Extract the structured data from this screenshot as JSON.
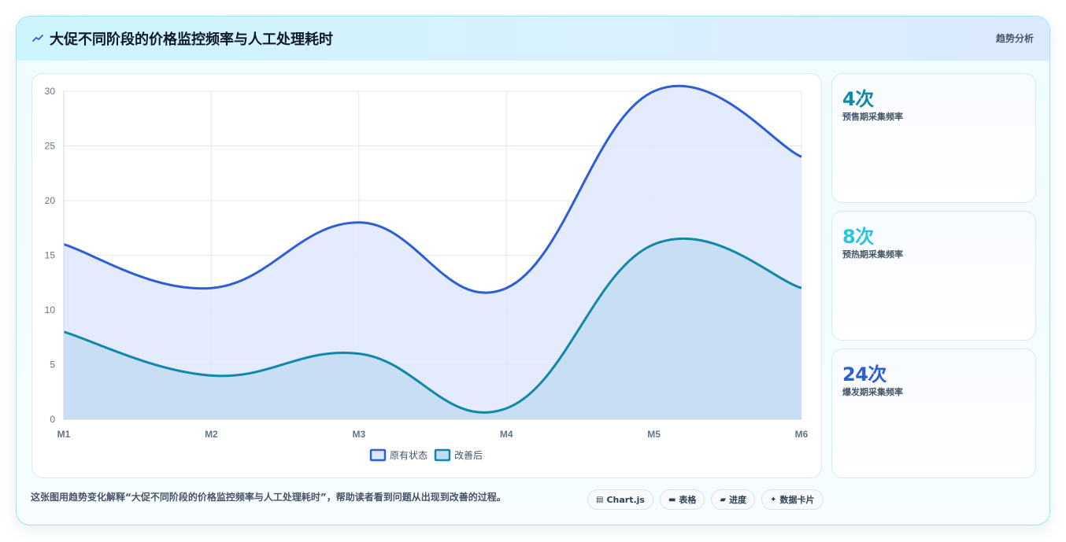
{
  "header": {
    "title": "大促不同阶段的价格监控频率与人工处理耗时",
    "tag": "趋势分析"
  },
  "stats": [
    {
      "value": "4次",
      "label": "预售期采集频率",
      "color": "#0e8aa8"
    },
    {
      "value": "8次",
      "label": "预热期采集频率",
      "color": "#2bc4e0"
    },
    {
      "value": "24次",
      "label": "爆发期采集频率",
      "color": "#2d5ed6"
    }
  ],
  "caption": "这张图用趋势变化解释“大促不同阶段的价格监控频率与人工处理耗时”，帮助读者看到问题从出现到改善的过程。",
  "chips": [
    {
      "icon": "chart-icon",
      "glyph": "▤",
      "label": "Chart.js"
    },
    {
      "icon": "table-icon",
      "glyph": "▬",
      "label": "表格"
    },
    {
      "icon": "progress-icon",
      "glyph": "▰",
      "label": "进度"
    },
    {
      "icon": "sparkle-icon",
      "glyph": "✦",
      "label": "数据卡片"
    }
  ],
  "chart_data": {
    "type": "area",
    "categories": [
      "M1",
      "M2",
      "M3",
      "M4",
      "M5",
      "M6"
    ],
    "ylim": [
      0,
      30
    ],
    "yticks": [
      0,
      5,
      10,
      15,
      20,
      25,
      30
    ],
    "grid": true,
    "legend_position": "bottom",
    "series": [
      {
        "name": "原有状态",
        "values": [
          16,
          12,
          18,
          12,
          30,
          24
        ],
        "color": "#2d5ed6",
        "fill": "#dfe7fb"
      },
      {
        "name": "改善后",
        "values": [
          8,
          4,
          6,
          1,
          16,
          12
        ],
        "color": "#1387a8",
        "fill": "#c3dcf2"
      }
    ]
  }
}
